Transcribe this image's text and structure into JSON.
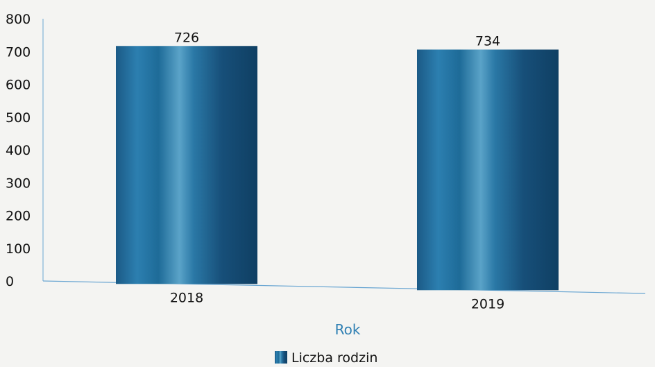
{
  "chart_data": {
    "type": "bar",
    "categories": [
      "2018",
      "2019"
    ],
    "series": [
      {
        "name": "Liczba rodzin",
        "values": [
          726,
          734
        ]
      }
    ],
    "xlabel": "Rok",
    "ylabel": "",
    "ylim": [
      0,
      800
    ],
    "yticks": [
      0,
      100,
      200,
      300,
      400,
      500,
      600,
      700,
      800
    ],
    "legend_position": "bottom-center",
    "grid": false,
    "colors": {
      "bar_dark": "#0f3f63",
      "bar_mid": "#1a6a94",
      "bar_light": "#2e86b4",
      "axis": "#6aa6d2",
      "xlabel": "#2e7fb3"
    }
  }
}
